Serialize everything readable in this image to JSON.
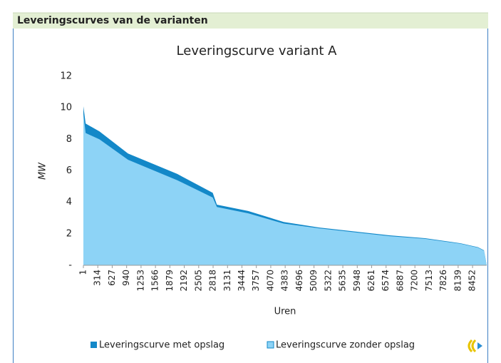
{
  "header": {
    "title": "Leveringscurves van de varianten"
  },
  "chart_data": {
    "type": "area",
    "title": "Leveringscurve variant A",
    "y_label": "MW",
    "x_label": "Uren",
    "x": [
      1,
      50,
      350,
      970,
      2040,
      2810,
      2900,
      3580,
      4350,
      5115,
      5880,
      6650,
      7420,
      8190,
      8570,
      8700,
      8760
    ],
    "series": [
      {
        "name": "Leveringscurve met opslag",
        "color": "#1388c8",
        "values": [
          10.1,
          9.0,
          8.5,
          7.1,
          5.8,
          4.6,
          3.85,
          3.45,
          2.75,
          2.4,
          2.15,
          1.9,
          1.72,
          1.4,
          1.15,
          0.95,
          0
        ]
      },
      {
        "name": "Leveringscurve zonder opslag",
        "color": "#8dd3f6",
        "values": [
          9.6,
          8.4,
          8.0,
          6.7,
          5.4,
          4.3,
          3.7,
          3.3,
          2.65,
          2.35,
          2.1,
          1.85,
          1.68,
          1.37,
          1.12,
          0.92,
          0
        ]
      }
    ],
    "xlim": [
      1,
      8760
    ],
    "xticks": [
      1,
      314,
      627,
      940,
      1253,
      1566,
      1879,
      2192,
      2505,
      2818,
      3131,
      3444,
      3757,
      4070,
      4383,
      4696,
      5009,
      5322,
      5635,
      5948,
      6261,
      6574,
      6887,
      7200,
      7513,
      7826,
      8139,
      8452
    ],
    "ylim": [
      0,
      12
    ],
    "yticks": [
      {
        "value": 0,
        "label": "-"
      },
      2,
      4,
      6,
      8,
      10,
      12
    ],
    "legend": "bottom"
  }
}
